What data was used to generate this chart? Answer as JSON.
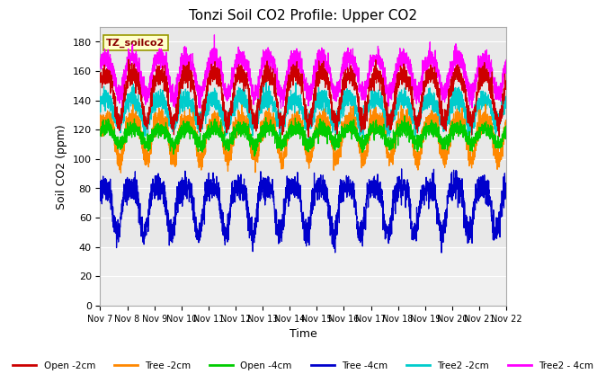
{
  "title": "Tonzi Soil CO2 Profile: Upper CO2",
  "xlabel": "Time",
  "ylabel": "Soil CO2 (ppm)",
  "annotation": "TZ_soilco2",
  "ylim": [
    0,
    190
  ],
  "yticks": [
    0,
    20,
    40,
    60,
    80,
    100,
    120,
    140,
    160,
    180
  ],
  "xtick_labels": [
    "Nov 7",
    "Nov 8",
    "Nov 9",
    "Nov 10",
    "Nov 11",
    "Nov 12",
    "Nov 13",
    "Nov 14",
    "Nov 15",
    "Nov 16",
    "Nov 17",
    "Nov 18",
    "Nov 19",
    "Nov 20",
    "Nov 21",
    "Nov 22"
  ],
  "n_days": 15,
  "n_points": 3000,
  "plot_bg": "#e8e8e8",
  "below40_bg": "#f0f0f0",
  "grid_color": "#ffffff",
  "series_colors": {
    "open2": "#cc0000",
    "tree2": "#ff8800",
    "open4": "#00cc00",
    "tree4": "#0000cc",
    "t2_2": "#00cccc",
    "t2_4": "#ff00ff"
  },
  "legend_labels": [
    "Open -2cm",
    "Tree -2cm",
    "Open -4cm",
    "Tree -4cm",
    "Tree2 -2cm",
    "Tree2 - 4cm"
  ]
}
